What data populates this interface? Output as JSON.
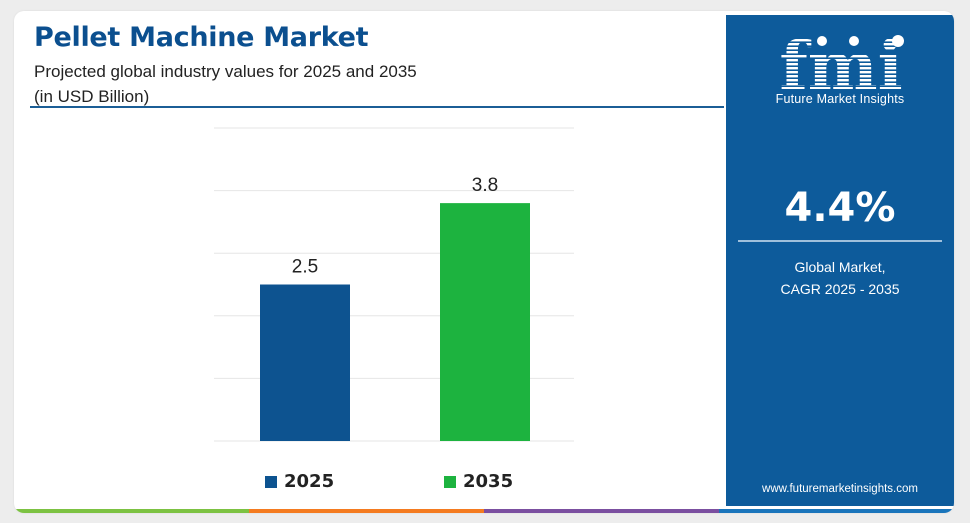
{
  "header": {
    "title": "Pellet Machine Market",
    "subtitle_line1": "Projected global industry values for 2025 and 2035",
    "subtitle_line2": "(in USD Billion)"
  },
  "chart_data": {
    "type": "bar",
    "categories": [
      "2025",
      "2035"
    ],
    "values": [
      2.5,
      3.8
    ],
    "colors": [
      "#0d5390",
      "#1db33f"
    ],
    "title": "Pellet Machine Market",
    "xlabel": "",
    "ylabel": "",
    "ylim": [
      0,
      5
    ],
    "grid": true,
    "legend": "bottom",
    "legend_entries": [
      "2025",
      "2035"
    ]
  },
  "sidebar": {
    "logo_text": "fmi",
    "logo_subtitle": "Future Market Insights",
    "cagr_value": "4.4%",
    "cagr_label_line1": "Global Market,",
    "cagr_label_line2": "CAGR 2025 - 2035",
    "website": "www.futuremarketinsights.com",
    "panel_color": "#0d5b9b"
  },
  "bottom_strip_colors": [
    "#7cc242",
    "#f47b20",
    "#7b4fa0",
    "#1a75bb"
  ]
}
